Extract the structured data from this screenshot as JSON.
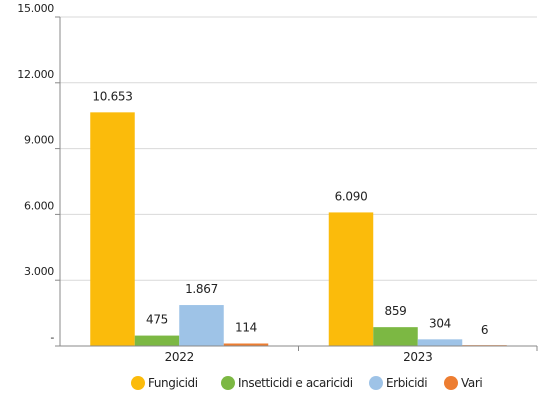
{
  "chart_data": {
    "type": "bar",
    "categories": [
      "2022",
      "2023"
    ],
    "series": [
      {
        "name": "Fungicidi",
        "color": "#FBBB0B",
        "values": [
          10653,
          6090
        ],
        "labels": [
          "10.653",
          "6.090"
        ]
      },
      {
        "name": "Insetticidi e acaricidi",
        "color": "#7CB843",
        "values": [
          475,
          859
        ],
        "labels": [
          "475",
          "859"
        ]
      },
      {
        "name": "Erbicidi",
        "color": "#9EC3E7",
        "values": [
          1867,
          304
        ],
        "labels": [
          "1.867",
          "304"
        ]
      },
      {
        "name": "Vari",
        "color": "#ED7D31",
        "values": [
          114,
          6
        ],
        "labels": [
          "114",
          "6"
        ]
      }
    ],
    "yticks": [
      {
        "value": 0,
        "label": "-"
      },
      {
        "value": 3000,
        "label": "3.000"
      },
      {
        "value": 6000,
        "label": "6.000"
      },
      {
        "value": 9000,
        "label": "9.000"
      },
      {
        "value": 12000,
        "label": "12.000"
      },
      {
        "value": 15000,
        "label": "15.000"
      }
    ],
    "ylim": [
      0,
      15000
    ],
    "grid": true,
    "legend_position": "bottom"
  }
}
